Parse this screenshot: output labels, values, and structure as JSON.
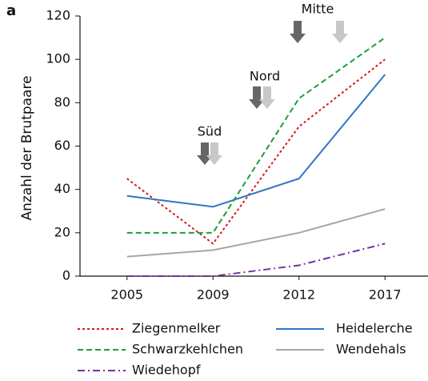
{
  "chart_data": {
    "type": "line",
    "panel_label": "a",
    "y_label": "Anzahl der Brutpaare",
    "categories": [
      "2005",
      "2009",
      "2012",
      "2017"
    ],
    "ylim": [
      0,
      120
    ],
    "yticks": [
      0,
      20,
      40,
      60,
      80,
      100,
      120
    ],
    "series": [
      {
        "name": "Ziegenmelker",
        "color": "#d7191c",
        "dash": "dotted",
        "values": [
          45,
          15,
          69,
          100
        ]
      },
      {
        "name": "Heidelerche",
        "color": "#2e75c5",
        "dash": "solid",
        "values": [
          37,
          32,
          45,
          93
        ]
      },
      {
        "name": "Schwarzkehlchen",
        "color": "#1a9e3a",
        "dash": "dashed",
        "values": [
          20,
          20,
          82,
          110
        ]
      },
      {
        "name": "Wendehals",
        "color": "#a6a6a6",
        "dash": "solid",
        "values": [
          9,
          12,
          20,
          31
        ]
      },
      {
        "name": "Wiedehopf",
        "color": "#7030a0",
        "dash": "dashdot",
        "values": [
          0,
          0,
          5,
          15
        ]
      }
    ],
    "annotations": [
      "Süd",
      "Nord",
      "Mitte"
    ],
    "legend": "bottom"
  }
}
